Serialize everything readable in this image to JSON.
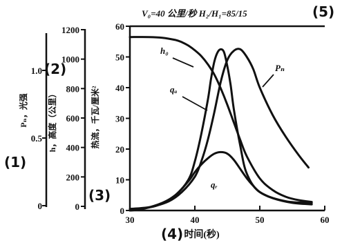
{
  "chart_data": {
    "type": "line",
    "title": "V₀=40 公里/秒 H₂/H₁=85/15",
    "xlabel": "时间(秒)",
    "x_ticks": [
      "30",
      "40",
      "50",
      "60"
    ],
    "xlim": [
      30,
      60
    ],
    "axes": [
      {
        "id": "pn",
        "label": "Pₙ，光强",
        "ticks": [
          "0",
          "0.5",
          "1.0"
        ],
        "range": [
          0,
          1.0
        ]
      },
      {
        "id": "h",
        "label": "h，高度（公里）",
        "ticks": [
          "0",
          "200",
          "400",
          "600",
          "800",
          "1000",
          "1200"
        ],
        "range": [
          0,
          1200
        ]
      },
      {
        "id": "flux",
        "label": "热流，千瓦/厘米²",
        "ticks": [
          "0",
          "10",
          "20",
          "30",
          "40",
          "50",
          "60"
        ],
        "range": [
          0,
          60
        ]
      }
    ],
    "series": [
      {
        "name": "h₀",
        "axis": "h",
        "x": [
          30,
          33,
          35,
          37,
          38,
          39,
          40,
          41,
          42,
          43,
          44,
          45,
          46,
          47,
          48,
          50,
          52,
          54,
          56,
          58
        ],
        "values": [
          1150,
          1150,
          1145,
          1130,
          1115,
          1092,
          1060,
          1020,
          965,
          895,
          800,
          690,
          570,
          450,
          340,
          190,
          110,
          65,
          42,
          30
        ]
      },
      {
        "name": "qₐ",
        "axis": "flux",
        "x": [
          30,
          34,
          37,
          39,
          40,
          41,
          42,
          42.5,
          43,
          43.5,
          44,
          44.5,
          45,
          45.5,
          46,
          47,
          48,
          50,
          54,
          58
        ],
        "values": [
          0.5,
          1.5,
          5,
          10,
          16,
          25,
          36,
          43,
          48.5,
          51.5,
          52.5,
          51.5,
          47,
          41,
          33,
          21,
          12,
          6,
          3,
          2.5
        ]
      },
      {
        "name": "Pₙ",
        "axis": "flux",
        "x": [
          30,
          33,
          36,
          38,
          40,
          41,
          42,
          43,
          44,
          45,
          46,
          47,
          48,
          49,
          50,
          52,
          54,
          56,
          57.5
        ],
        "values": [
          0,
          1,
          3,
          6,
          11,
          16,
          23,
          32,
          42,
          49,
          52,
          52.5,
          50,
          46,
          40,
          31,
          24,
          18,
          14
        ]
      },
      {
        "name": "qᵣ",
        "axis": "flux",
        "x": [
          30,
          32,
          35,
          37,
          39,
          40,
          41,
          42,
          43,
          44,
          45,
          46,
          47,
          48,
          49,
          50,
          52,
          55,
          58
        ],
        "values": [
          0,
          0.5,
          2.5,
          5,
          9.5,
          12.5,
          15,
          17,
          18.5,
          19,
          18.5,
          16.5,
          13.5,
          10.5,
          8,
          6,
          4,
          2.5,
          2
        ]
      }
    ]
  },
  "markers": [
    "(1)",
    "(2)",
    "(3)",
    "(4)",
    "(5)"
  ]
}
